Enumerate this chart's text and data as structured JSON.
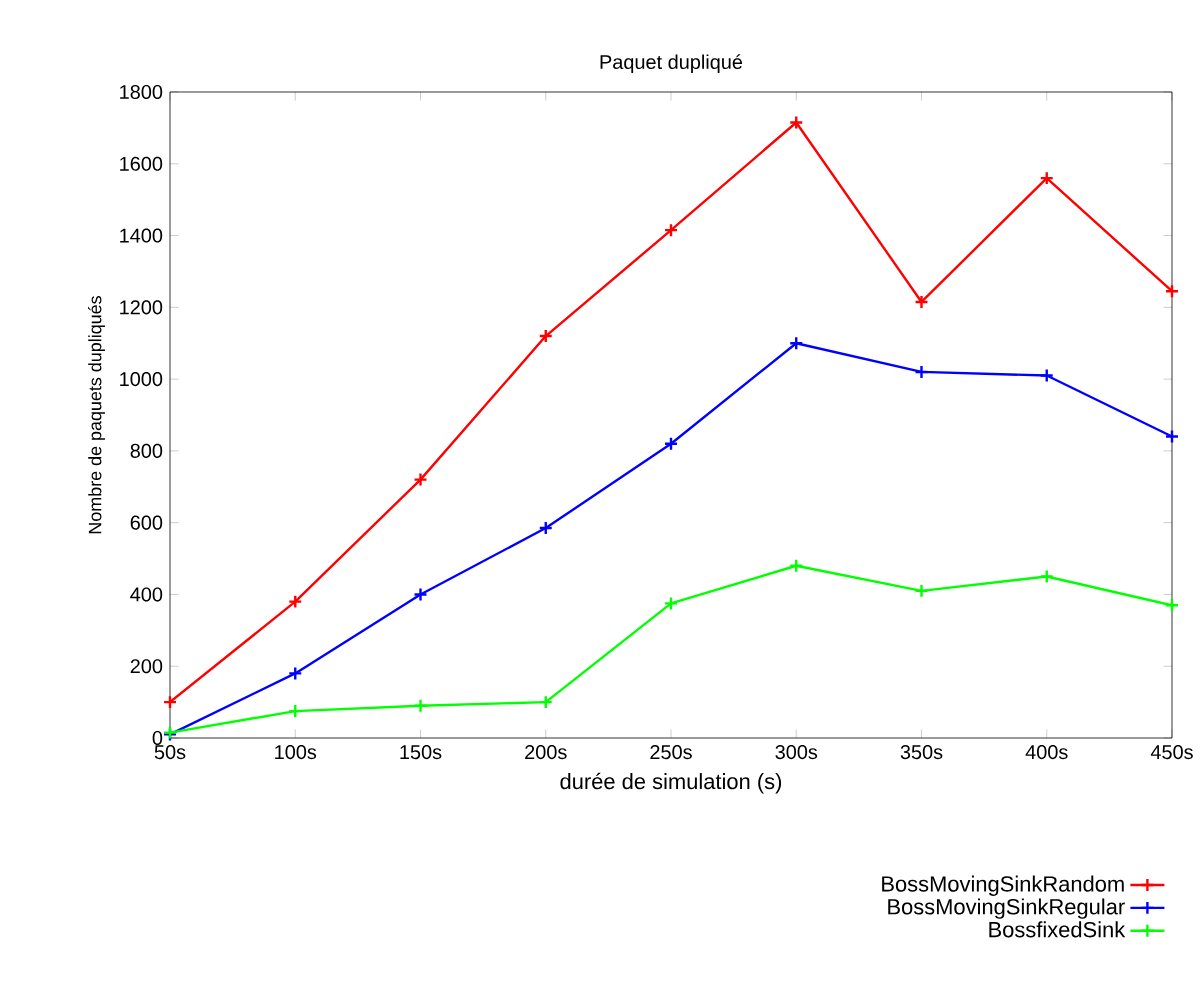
{
  "chart_data": {
    "type": "line",
    "title": "Paquet dupliqué",
    "xlabel": "durée de simulation (s)",
    "ylabel": "Nombre de paquets dupliqués",
    "categories": [
      "50s",
      "100s",
      "150s",
      "200s",
      "250s",
      "300s",
      "350s",
      "400s",
      "450s"
    ],
    "series": [
      {
        "name": "BossMovingSinkRandom",
        "color": "#ff0000",
        "values": [
          100,
          380,
          720,
          1120,
          1415,
          1715,
          1215,
          1560,
          1245
        ]
      },
      {
        "name": "BossMovingSinkRegular",
        "color": "#0000ff",
        "values": [
          10,
          180,
          400,
          585,
          820,
          1100,
          1020,
          1010,
          840
        ]
      },
      {
        "name": "BossfixedSink",
        "color": "#00ff00",
        "values": [
          15,
          75,
          90,
          100,
          375,
          480,
          410,
          450,
          370
        ]
      }
    ],
    "ylim": [
      0,
      1800
    ],
    "yticks": [
      0,
      200,
      400,
      600,
      800,
      1000,
      1200,
      1400,
      1600,
      1800
    ],
    "legend": "bottom right",
    "marker": "cross",
    "grid": false,
    "line_style": "solid"
  }
}
